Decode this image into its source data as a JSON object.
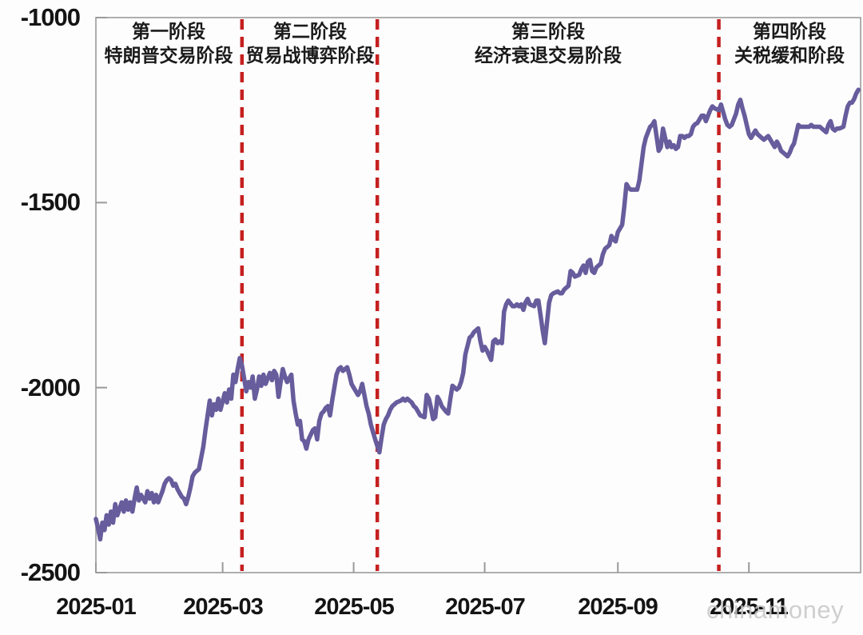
{
  "watermark": "chinamoney",
  "chart_data": {
    "type": "line",
    "title": "",
    "xlabel": "",
    "ylabel": "",
    "x_unit": "day of year 2025",
    "ylim": [
      -2500,
      -1000
    ],
    "xlim_days": [
      0,
      356
    ],
    "grid": false,
    "legend": "none",
    "line_color": "#675c9c",
    "divider_color": "#c52020",
    "axis_color": "#9a9a9a",
    "text_color": "#141414",
    "y_ticks": [
      {
        "value": -1000,
        "label": "-1000"
      },
      {
        "value": -1500,
        "label": "-1500"
      },
      {
        "value": -2000,
        "label": "-2000"
      },
      {
        "value": -2500,
        "label": "-2500"
      }
    ],
    "x_ticks": [
      {
        "day": 0,
        "label": "2025-01"
      },
      {
        "day": 59,
        "label": "2025-03"
      },
      {
        "day": 120,
        "label": "2025-05"
      },
      {
        "day": 181,
        "label": "2025-07"
      },
      {
        "day": 243,
        "label": "2025-09"
      },
      {
        "day": 304,
        "label": "2025-11"
      }
    ],
    "dividers_day": [
      68,
      131,
      290
    ],
    "phases": [
      {
        "line1": "第一阶段",
        "line2": "特朗普交易阶段",
        "start_day": 0,
        "end_day": 68
      },
      {
        "line1": "第二阶段",
        "line2": "贸易战博弈阶段",
        "start_day": 68,
        "end_day": 131
      },
      {
        "line1": "第三阶段",
        "line2": "经济衰退交易阶段",
        "start_day": 131,
        "end_day": 290
      },
      {
        "line1": "第四阶段",
        "line2": "关税缓和阶段",
        "start_day": 290,
        "end_day": 356
      }
    ],
    "points": [
      [
        0,
        -2355
      ],
      [
        1,
        -2380
      ],
      [
        2,
        -2410
      ],
      [
        3,
        -2365
      ],
      [
        4,
        -2385
      ],
      [
        5,
        -2345
      ],
      [
        6,
        -2370
      ],
      [
        7,
        -2335
      ],
      [
        8,
        -2365
      ],
      [
        9,
        -2315
      ],
      [
        10,
        -2345
      ],
      [
        12,
        -2310
      ],
      [
        13,
        -2335
      ],
      [
        14,
        -2305
      ],
      [
        15,
        -2330
      ],
      [
        16,
        -2310
      ],
      [
        17,
        -2335
      ],
      [
        18,
        -2300
      ],
      [
        19,
        -2270
      ],
      [
        20,
        -2305
      ],
      [
        21,
        -2290
      ],
      [
        23,
        -2310
      ],
      [
        24,
        -2280
      ],
      [
        25,
        -2300
      ],
      [
        26,
        -2285
      ],
      [
        27,
        -2310
      ],
      [
        28,
        -2290
      ],
      [
        29,
        -2310
      ],
      [
        30,
        -2295
      ],
      [
        31,
        -2280
      ],
      [
        32,
        -2260
      ],
      [
        33,
        -2250
      ],
      [
        34,
        -2245
      ],
      [
        35,
        -2250
      ],
      [
        36,
        -2265
      ],
      [
        37,
        -2260
      ],
      [
        38,
        -2275
      ],
      [
        39,
        -2285
      ],
      [
        40,
        -2295
      ],
      [
        41,
        -2300
      ],
      [
        42,
        -2315
      ],
      [
        43,
        -2295
      ],
      [
        44,
        -2270
      ],
      [
        45,
        -2240
      ],
      [
        46,
        -2230
      ],
      [
        47,
        -2225
      ],
      [
        48,
        -2220
      ],
      [
        49,
        -2190
      ],
      [
        50,
        -2160
      ],
      [
        51,
        -2115
      ],
      [
        52,
        -2075
      ],
      [
        53,
        -2035
      ],
      [
        54,
        -2075
      ],
      [
        55,
        -2045
      ],
      [
        56,
        -2060
      ],
      [
        57,
        -2030
      ],
      [
        58,
        -2060
      ],
      [
        60,
        -2015
      ],
      [
        61,
        -2040
      ],
      [
        62,
        -2005
      ],
      [
        63,
        -2030
      ],
      [
        64,
        -1965
      ],
      [
        65,
        -1985
      ],
      [
        66,
        -1950
      ],
      [
        67,
        -1920
      ],
      [
        68,
        -1940
      ],
      [
        70,
        -2010
      ],
      [
        71,
        -1985
      ],
      [
        72,
        -2000
      ],
      [
        73,
        -1970
      ],
      [
        74,
        -2030
      ],
      [
        75,
        -2005
      ],
      [
        76,
        -1970
      ],
      [
        77,
        -1995
      ],
      [
        78,
        -1965
      ],
      [
        79,
        -1990
      ],
      [
        81,
        -1960
      ],
      [
        82,
        -1980
      ],
      [
        83,
        -1955
      ],
      [
        84,
        -1965
      ],
      [
        85,
        -2025
      ],
      [
        86,
        -1985
      ],
      [
        87,
        -1950
      ],
      [
        88,
        -1970
      ],
      [
        89,
        -1985
      ],
      [
        91,
        -1965
      ],
      [
        92,
        -2035
      ],
      [
        93,
        -2070
      ],
      [
        94,
        -2100
      ],
      [
        95,
        -2090
      ],
      [
        96,
        -2140
      ],
      [
        97,
        -2145
      ],
      [
        98,
        -2165
      ],
      [
        99,
        -2140
      ],
      [
        101,
        -2115
      ],
      [
        102,
        -2110
      ],
      [
        103,
        -2140
      ],
      [
        104,
        -2090
      ],
      [
        105,
        -2070
      ],
      [
        106,
        -2065
      ],
      [
        107,
        -2055
      ],
      [
        108,
        -2050
      ],
      [
        109,
        -2075
      ],
      [
        110,
        -2035
      ],
      [
        112,
        -1965
      ],
      [
        113,
        -1950
      ],
      [
        114,
        -1945
      ],
      [
        115,
        -1955
      ],
      [
        116,
        -1950
      ],
      [
        117,
        -1945
      ],
      [
        118,
        -1965
      ],
      [
        119,
        -1990
      ],
      [
        120,
        -2000
      ],
      [
        122,
        -2020
      ],
      [
        123,
        -2010
      ],
      [
        124,
        -1990
      ],
      [
        125,
        -2020
      ],
      [
        126,
        -2050
      ],
      [
        127,
        -2070
      ],
      [
        128,
        -2100
      ],
      [
        129,
        -2120
      ],
      [
        130,
        -2140
      ],
      [
        132,
        -2175
      ],
      [
        133,
        -2135
      ],
      [
        134,
        -2100
      ],
      [
        135,
        -2085
      ],
      [
        136,
        -2075
      ],
      [
        137,
        -2060
      ],
      [
        138,
        -2050
      ],
      [
        139,
        -2045
      ],
      [
        140,
        -2040
      ],
      [
        142,
        -2035
      ],
      [
        143,
        -2030
      ],
      [
        144,
        -2035
      ],
      [
        145,
        -2030
      ],
      [
        146,
        -2035
      ],
      [
        147,
        -2040
      ],
      [
        148,
        -2050
      ],
      [
        149,
        -2055
      ],
      [
        150,
        -2065
      ],
      [
        151,
        -2075
      ],
      [
        153,
        -2080
      ],
      [
        154,
        -2020
      ],
      [
        155,
        -2030
      ],
      [
        156,
        -2055
      ],
      [
        157,
        -2085
      ],
      [
        158,
        -2080
      ],
      [
        159,
        -2025
      ],
      [
        160,
        -2035
      ],
      [
        161,
        -2050
      ],
      [
        163,
        -2065
      ],
      [
        164,
        -2070
      ],
      [
        165,
        -2030
      ],
      [
        166,
        -1995
      ],
      [
        167,
        -2000
      ],
      [
        168,
        -2005
      ],
      [
        169,
        -2000
      ],
      [
        170,
        -1985
      ],
      [
        171,
        -1960
      ],
      [
        172,
        -1910
      ],
      [
        174,
        -1865
      ],
      [
        175,
        -1860
      ],
      [
        176,
        -1850
      ],
      [
        177,
        -1845
      ],
      [
        178,
        -1840
      ],
      [
        179,
        -1875
      ],
      [
        180,
        -1900
      ],
      [
        181,
        -1890
      ],
      [
        182,
        -1900
      ],
      [
        184,
        -1925
      ],
      [
        185,
        -1875
      ],
      [
        186,
        -1870
      ],
      [
        187,
        -1880
      ],
      [
        188,
        -1875
      ],
      [
        189,
        -1880
      ],
      [
        190,
        -1795
      ],
      [
        191,
        -1775
      ],
      [
        192,
        -1765
      ],
      [
        194,
        -1780
      ],
      [
        195,
        -1780
      ],
      [
        196,
        -1775
      ],
      [
        197,
        -1780
      ],
      [
        198,
        -1775
      ],
      [
        199,
        -1790
      ],
      [
        200,
        -1770
      ],
      [
        201,
        -1760
      ],
      [
        202,
        -1775
      ],
      [
        204,
        -1780
      ],
      [
        205,
        -1765
      ],
      [
        206,
        -1765
      ],
      [
        207,
        -1805
      ],
      [
        208,
        -1845
      ],
      [
        209,
        -1880
      ],
      [
        210,
        -1825
      ],
      [
        211,
        -1770
      ],
      [
        212,
        -1750
      ],
      [
        213,
        -1745
      ],
      [
        215,
        -1740
      ],
      [
        216,
        -1745
      ],
      [
        217,
        -1745
      ],
      [
        218,
        -1735
      ],
      [
        219,
        -1730
      ],
      [
        220,
        -1725
      ],
      [
        221,
        -1685
      ],
      [
        222,
        -1690
      ],
      [
        223,
        -1700
      ],
      [
        225,
        -1695
      ],
      [
        226,
        -1680
      ],
      [
        227,
        -1670
      ],
      [
        228,
        -1690
      ],
      [
        229,
        -1660
      ],
      [
        230,
        -1655
      ],
      [
        231,
        -1685
      ],
      [
        232,
        -1690
      ],
      [
        233,
        -1675
      ],
      [
        235,
        -1665
      ],
      [
        236,
        -1640
      ],
      [
        237,
        -1625
      ],
      [
        238,
        -1620
      ],
      [
        239,
        -1615
      ],
      [
        240,
        -1590
      ],
      [
        241,
        -1600
      ],
      [
        242,
        -1605
      ],
      [
        243,
        -1580
      ],
      [
        245,
        -1560
      ],
      [
        246,
        -1510
      ],
      [
        247,
        -1450
      ],
      [
        248,
        -1460
      ],
      [
        249,
        -1465
      ],
      [
        250,
        -1465
      ],
      [
        251,
        -1465
      ],
      [
        252,
        -1465
      ],
      [
        253,
        -1440
      ],
      [
        255,
        -1350
      ],
      [
        256,
        -1325
      ],
      [
        257,
        -1310
      ],
      [
        258,
        -1295
      ],
      [
        259,
        -1290
      ],
      [
        260,
        -1280
      ],
      [
        261,
        -1320
      ],
      [
        262,
        -1360
      ],
      [
        263,
        -1350
      ],
      [
        264,
        -1300
      ],
      [
        265,
        -1325
      ],
      [
        266,
        -1350
      ],
      [
        267,
        -1335
      ],
      [
        268,
        -1350
      ],
      [
        269,
        -1345
      ],
      [
        270,
        -1355
      ],
      [
        271,
        -1350
      ],
      [
        272,
        -1320
      ],
      [
        273,
        -1320
      ],
      [
        274,
        -1325
      ],
      [
        275,
        -1320
      ],
      [
        276,
        -1320
      ],
      [
        277,
        -1315
      ],
      [
        278,
        -1295
      ],
      [
        279,
        -1288
      ],
      [
        280,
        -1285
      ],
      [
        281,
        -1275
      ],
      [
        282,
        -1265
      ],
      [
        283,
        -1265
      ],
      [
        284,
        -1280
      ],
      [
        285,
        -1265
      ],
      [
        286,
        -1250
      ],
      [
        287,
        -1240
      ],
      [
        288,
        -1245
      ],
      [
        289,
        -1248
      ],
      [
        290,
        -1250
      ],
      [
        291,
        -1235
      ],
      [
        292,
        -1255
      ],
      [
        293,
        -1275
      ],
      [
        294,
        -1290
      ],
      [
        295,
        -1295
      ],
      [
        296,
        -1290
      ],
      [
        298,
        -1260
      ],
      [
        299,
        -1235
      ],
      [
        300,
        -1222
      ],
      [
        301,
        -1245
      ],
      [
        302,
        -1265
      ],
      [
        303,
        -1290
      ],
      [
        304,
        -1315
      ],
      [
        305,
        -1325
      ],
      [
        306,
        -1315
      ],
      [
        307,
        -1305
      ],
      [
        308,
        -1315
      ],
      [
        310,
        -1325
      ],
      [
        311,
        -1330
      ],
      [
        312,
        -1325
      ],
      [
        313,
        -1320
      ],
      [
        314,
        -1330
      ],
      [
        315,
        -1340
      ],
      [
        316,
        -1350
      ],
      [
        317,
        -1335
      ],
      [
        318,
        -1345
      ],
      [
        319,
        -1360
      ],
      [
        321,
        -1370
      ],
      [
        322,
        -1375
      ],
      [
        323,
        -1365
      ],
      [
        324,
        -1350
      ],
      [
        325,
        -1340
      ],
      [
        326,
        -1315
      ],
      [
        327,
        -1290
      ],
      [
        328,
        -1295
      ],
      [
        330,
        -1295
      ],
      [
        331,
        -1295
      ],
      [
        332,
        -1295
      ],
      [
        333,
        -1290
      ],
      [
        334,
        -1295
      ],
      [
        335,
        -1295
      ],
      [
        336,
        -1295
      ],
      [
        337,
        -1295
      ],
      [
        338,
        -1300
      ],
      [
        340,
        -1310
      ],
      [
        341,
        -1290
      ],
      [
        342,
        -1280
      ],
      [
        343,
        -1300
      ],
      [
        344,
        -1305
      ],
      [
        345,
        -1300
      ],
      [
        346,
        -1300
      ],
      [
        348,
        -1295
      ],
      [
        349,
        -1265
      ],
      [
        350,
        -1240
      ],
      [
        351,
        -1230
      ],
      [
        352,
        -1230
      ],
      [
        353,
        -1220
      ],
      [
        354,
        -1205
      ],
      [
        355,
        -1195
      ]
    ]
  }
}
